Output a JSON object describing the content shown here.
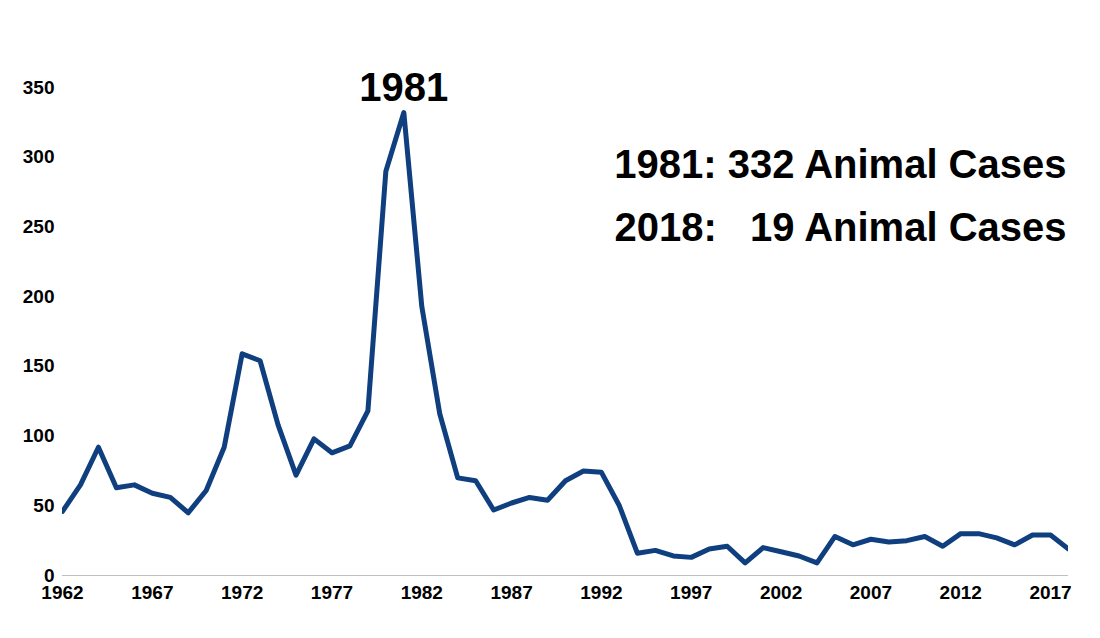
{
  "chart_data": {
    "type": "line",
    "x": [
      1962,
      1963,
      1964,
      1965,
      1966,
      1967,
      1968,
      1969,
      1970,
      1971,
      1972,
      1973,
      1974,
      1975,
      1976,
      1977,
      1978,
      1979,
      1980,
      1981,
      1982,
      1983,
      1984,
      1985,
      1986,
      1987,
      1988,
      1989,
      1990,
      1991,
      1992,
      1993,
      1994,
      1995,
      1996,
      1997,
      1998,
      1999,
      2000,
      2001,
      2002,
      2003,
      2004,
      2005,
      2006,
      2007,
      2008,
      2009,
      2010,
      2011,
      2012,
      2013,
      2014,
      2015,
      2016,
      2017,
      2018
    ],
    "values": [
      46,
      65,
      92,
      63,
      65,
      59,
      56,
      45,
      61,
      92,
      159,
      154,
      108,
      72,
      98,
      88,
      93,
      118,
      290,
      332,
      193,
      116,
      70,
      68,
      47,
      52,
      56,
      54,
      68,
      75,
      74,
      50,
      16,
      18,
      14,
      13,
      19,
      21,
      9,
      20,
      17,
      14,
      9,
      28,
      22,
      26,
      24,
      25,
      28,
      21,
      30,
      30,
      27,
      22,
      29,
      29,
      19
    ],
    "color": "#0f3f7f",
    "xlim": [
      1962,
      2018
    ],
    "xticks": [
      1962,
      1967,
      1972,
      1977,
      1982,
      1987,
      1992,
      1997,
      2002,
      2007,
      2012,
      2017
    ],
    "ylim": [
      0,
      350
    ],
    "yticks": [
      0,
      50,
      100,
      150,
      200,
      250,
      300,
      350
    ],
    "grid": false,
    "annotations": [
      "1981",
      "1981: 332 Animal Cases",
      "2018:   19 Animal Cases"
    ]
  }
}
